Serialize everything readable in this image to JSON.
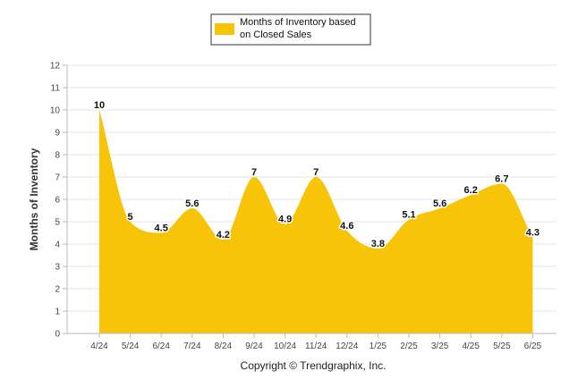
{
  "chart_data": {
    "type": "area",
    "categories": [
      "4/24",
      "5/24",
      "6/24",
      "7/24",
      "8/24",
      "9/24",
      "10/24",
      "11/24",
      "12/24",
      "1/25",
      "2/25",
      "3/25",
      "4/25",
      "5/25",
      "6/25"
    ],
    "series": [
      {
        "name": "Months of Inventory based on Closed Sales",
        "values": [
          10,
          5,
          4.5,
          5.6,
          4.2,
          7,
          4.9,
          7,
          4.6,
          3.8,
          5.1,
          5.6,
          6.2,
          6.7,
          4.3
        ],
        "color": "#F7C407"
      }
    ],
    "data_labels": [
      "10",
      "5",
      "4.5",
      "5.6",
      "4.2",
      "7",
      "4.9",
      "7",
      "4.6",
      "3.8",
      "5.1",
      "5.6",
      "6.2",
      "6.7",
      "4.3"
    ],
    "ylabel": "Months of Inventory",
    "xlabel": "",
    "ylim": [
      0,
      12
    ],
    "yticks": [
      "0",
      "1",
      "2",
      "3",
      "4",
      "5",
      "6",
      "7",
      "8",
      "9",
      "10",
      "11",
      "12"
    ],
    "grid": true,
    "legend_position": "top-center"
  },
  "legend": {
    "label_line1": "Months of Inventory based",
    "label_line2": "on Closed Sales"
  },
  "footer": {
    "copyright": "Copyright © Trendgraphix, Inc."
  }
}
